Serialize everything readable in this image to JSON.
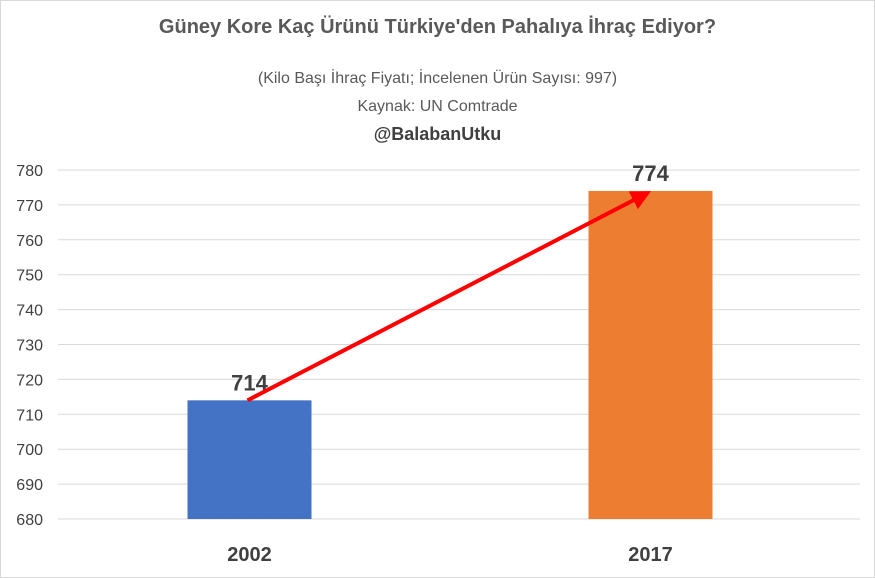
{
  "header": {
    "title": "Güney Kore Kaç Ürünü Türkiye'den Pahalıya İhraç Ediyor?",
    "subtitle": "(Kilo Başı İhraç Fiyatı; İncelenen Ürün Sayısı: 997)",
    "source": "Kaynak: UN Comtrade",
    "handle": "@BalabanUtku"
  },
  "chart_data": {
    "type": "bar",
    "categories": [
      "2002",
      "2017"
    ],
    "values": [
      714,
      774
    ],
    "colors": [
      "#4472c4",
      "#ed7d31"
    ],
    "ylim": [
      680,
      780
    ],
    "yticks": [
      680,
      690,
      700,
      710,
      720,
      730,
      740,
      750,
      760,
      770,
      780
    ],
    "grid": true,
    "annotation": {
      "type": "arrow",
      "from": "2002",
      "to": "2017",
      "color": "#ff0000"
    }
  }
}
